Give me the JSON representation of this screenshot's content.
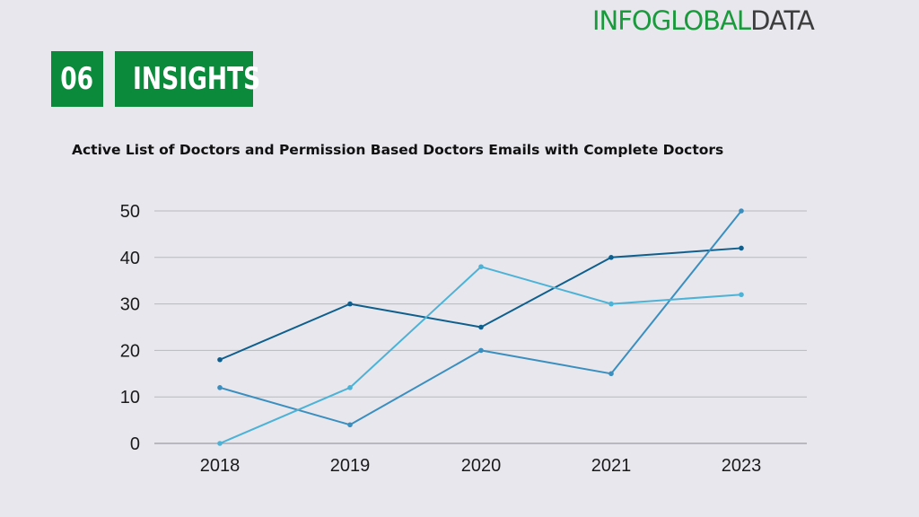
{
  "logo": {
    "part1": "INFOGLOBAL",
    "part2": "DATA"
  },
  "header": {
    "number": "06",
    "label": "INSIGHTS"
  },
  "colors": {
    "accent": "#0a8a3a",
    "grid": "#b8b8bf",
    "background": "#e8e7ee"
  },
  "chart_data": {
    "type": "line",
    "title": "Active List of Doctors and Permission Based Doctors Emails with Complete Doctors",
    "categories": [
      "2018",
      "2019",
      "2020",
      "2021",
      "2023"
    ],
    "ylim": [
      0,
      50
    ],
    "yticks": [
      0,
      10,
      20,
      30,
      40,
      50
    ],
    "grid": true,
    "series": [
      {
        "color": "#0f5f8c",
        "values": [
          18,
          30,
          25,
          40,
          42
        ]
      },
      {
        "color": "#3a8fbf",
        "values": [
          12,
          4,
          20,
          15,
          50
        ]
      },
      {
        "color": "#4db3d6",
        "values": [
          0,
          12,
          38,
          30,
          32
        ]
      }
    ]
  }
}
